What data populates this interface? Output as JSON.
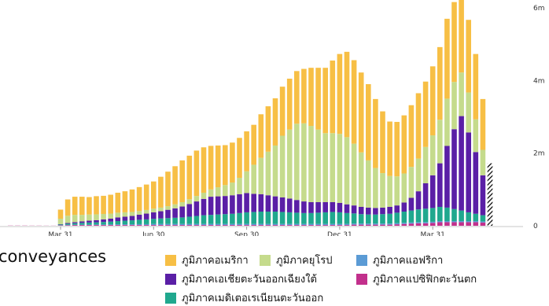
{
  "side_label": "conveyances",
  "chart_data": {
    "type": "bar",
    "stacked": true,
    "title": "",
    "xlabel": "",
    "ylabel": "",
    "ylim": [
      0,
      6000000
    ],
    "y_ticks": [
      {
        "value": 6000000,
        "label": "6m"
      },
      {
        "value": 4000000,
        "label": "4m"
      },
      {
        "value": 2000000,
        "label": "2m"
      },
      {
        "value": 0,
        "label": "0"
      }
    ],
    "x_ticks": [
      {
        "index": 7,
        "label": "Mar 31"
      },
      {
        "index": 20,
        "label": "Jun 30"
      },
      {
        "index": 33,
        "label": "Sep 30"
      },
      {
        "index": 46,
        "label": "Dec 31"
      },
      {
        "index": 59,
        "label": "Mar 31"
      }
    ],
    "legend_position": "bottom",
    "series": [
      {
        "name": "ภูมิภาคแปซิฟิกตะวันตก",
        "color": "#c2308c",
        "values": [
          5000,
          5000,
          5000,
          4000,
          4000,
          3000,
          3000,
          10000,
          15000,
          20000,
          20000,
          20000,
          20000,
          20000,
          20000,
          20000,
          20000,
          20000,
          20000,
          20000,
          20000,
          20000,
          20000,
          20000,
          20000,
          20000,
          20000,
          20000,
          20000,
          20000,
          20000,
          20000,
          20000,
          20000,
          20000,
          20000,
          20000,
          20000,
          20000,
          20000,
          20000,
          20000,
          20000,
          20000,
          20000,
          20000,
          20000,
          20000,
          30000,
          30000,
          30000,
          30000,
          30000,
          30000,
          40000,
          50000,
          60000,
          70000,
          70000,
          80000,
          100000,
          100000,
          100000,
          100000,
          100000,
          100000,
          90000
        ]
      },
      {
        "name": "ภูมิภาคแอฟริกา",
        "color": "#5b9bd5",
        "values": [
          0,
          0,
          0,
          0,
          0,
          0,
          0,
          5000,
          10000,
          10000,
          10000,
          10000,
          15000,
          15000,
          15000,
          20000,
          20000,
          20000,
          25000,
          25000,
          30000,
          30000,
          30000,
          30000,
          30000,
          30000,
          30000,
          30000,
          30000,
          30000,
          30000,
          30000,
          30000,
          30000,
          30000,
          30000,
          30000,
          30000,
          30000,
          30000,
          30000,
          30000,
          30000,
          30000,
          30000,
          30000,
          30000,
          30000,
          30000,
          30000,
          30000,
          30000,
          30000,
          30000,
          30000,
          30000,
          30000,
          30000,
          30000,
          30000,
          30000,
          30000,
          30000,
          30000,
          30000,
          30000,
          30000
        ]
      },
      {
        "name": "ภูมิภาคเมดิเตอเรเนียนตะวันออก",
        "color": "#20a88e",
        "values": [
          0,
          0,
          0,
          0,
          0,
          0,
          0,
          20000,
          30000,
          40000,
          50000,
          60000,
          60000,
          70000,
          80000,
          90000,
          100000,
          110000,
          120000,
          130000,
          140000,
          150000,
          160000,
          170000,
          180000,
          200000,
          220000,
          240000,
          250000,
          260000,
          270000,
          280000,
          300000,
          320000,
          330000,
          340000,
          340000,
          340000,
          330000,
          320000,
          310000,
          300000,
          300000,
          310000,
          320000,
          330000,
          320000,
          300000,
          280000,
          260000,
          250000,
          250000,
          260000,
          270000,
          290000,
          310000,
          330000,
          350000,
          370000,
          380000,
          390000,
          370000,
          330000,
          290000,
          240000,
          200000,
          170000
        ]
      },
      {
        "name": "ภูมิภาคเอเชียตะวันออกเฉียงใต้",
        "color": "#5a1fa6",
        "values": [
          0,
          0,
          0,
          0,
          0,
          0,
          0,
          10000,
          20000,
          30000,
          40000,
          50000,
          60000,
          70000,
          80000,
          100000,
          110000,
          120000,
          140000,
          160000,
          180000,
          200000,
          230000,
          260000,
          300000,
          350000,
          400000,
          450000,
          500000,
          500000,
          500000,
          510000,
          520000,
          530000,
          500000,
          480000,
          450000,
          420000,
          400000,
          380000,
          350000,
          320000,
          300000,
          290000,
          280000,
          270000,
          260000,
          240000,
          220000,
          200000,
          190000,
          180000,
          180000,
          190000,
          200000,
          250000,
          350000,
          500000,
          700000,
          900000,
          1200000,
          1700000,
          2200000,
          2600000,
          2200000,
          1700000,
          1100000
        ]
      },
      {
        "name": "ภูมิภาคยุโรป",
        "color": "#c5db8c",
        "values": [
          0,
          0,
          0,
          0,
          0,
          0,
          0,
          150000,
          200000,
          200000,
          180000,
          170000,
          160000,
          150000,
          140000,
          130000,
          120000,
          110000,
          100000,
          100000,
          100000,
          100000,
          100000,
          110000,
          120000,
          130000,
          150000,
          170000,
          200000,
          250000,
          300000,
          350000,
          450000,
          600000,
          800000,
          1000000,
          1200000,
          1400000,
          1700000,
          1900000,
          2100000,
          2150000,
          2100000,
          2000000,
          1900000,
          1900000,
          1900000,
          1850000,
          1700000,
          1500000,
          1300000,
          1100000,
          950000,
          850000,
          800000,
          800000,
          850000,
          900000,
          1000000,
          1100000,
          1200000,
          1300000,
          1300000,
          1200000,
          1100000,
          900000,
          700000
        ]
      },
      {
        "name": "ภูมิภาคอเมริกา",
        "color": "#f7bf45",
        "values": [
          0,
          0,
          0,
          0,
          0,
          0,
          0,
          250000,
          450000,
          500000,
          500000,
          480000,
          500000,
          500000,
          520000,
          550000,
          580000,
          620000,
          660000,
          700000,
          750000,
          850000,
          950000,
          1050000,
          1150000,
          1200000,
          1250000,
          1250000,
          1200000,
          1150000,
          1100000,
          1100000,
          1100000,
          1100000,
          1100000,
          1200000,
          1250000,
          1300000,
          1350000,
          1400000,
          1450000,
          1500000,
          1600000,
          1700000,
          1800000,
          2000000,
          2200000,
          2350000,
          2300000,
          2200000,
          2100000,
          1900000,
          1700000,
          1500000,
          1500000,
          1600000,
          1700000,
          1800000,
          1800000,
          1900000,
          2000000,
          2200000,
          2200000,
          2000000,
          2000000,
          1800000,
          1400000
        ]
      }
    ],
    "partial_bar": {
      "heights": {
        "ภูมิภาคแปซิฟิกตะวันตก": 80000,
        "ภูมิภาคแอฟริกา": 20000,
        "ภูมิภาคเมดิเตอเรเนียนตะวันออก": 120000,
        "ภูมิภาคเอเชียตะวันออกเฉียงใต้": 750000,
        "ภูมิภาคยุโรป": 400000,
        "ภูมิภาคอเมริกา": 350000
      }
    }
  },
  "legend": [
    {
      "label": "ภูมิภาคอเมริกา",
      "color": "#f7bf45"
    },
    {
      "label": "ภูมิภาคยุโรป",
      "color": "#c5db8c"
    },
    {
      "label": "ภูมิภาคแอฟริกา",
      "color": "#5b9bd5"
    },
    {
      "label": "ภูมิภาคเอเชียตะวันออกเฉียงใต้",
      "color": "#5a1fa6"
    },
    {
      "label": "ภูมิภาคแปซิฟิกตะวันตก",
      "color": "#c2308c"
    },
    {
      "label": "ภูมิภาคเมดิเตอเรเนียนตะวันออก",
      "color": "#20a88e"
    }
  ]
}
